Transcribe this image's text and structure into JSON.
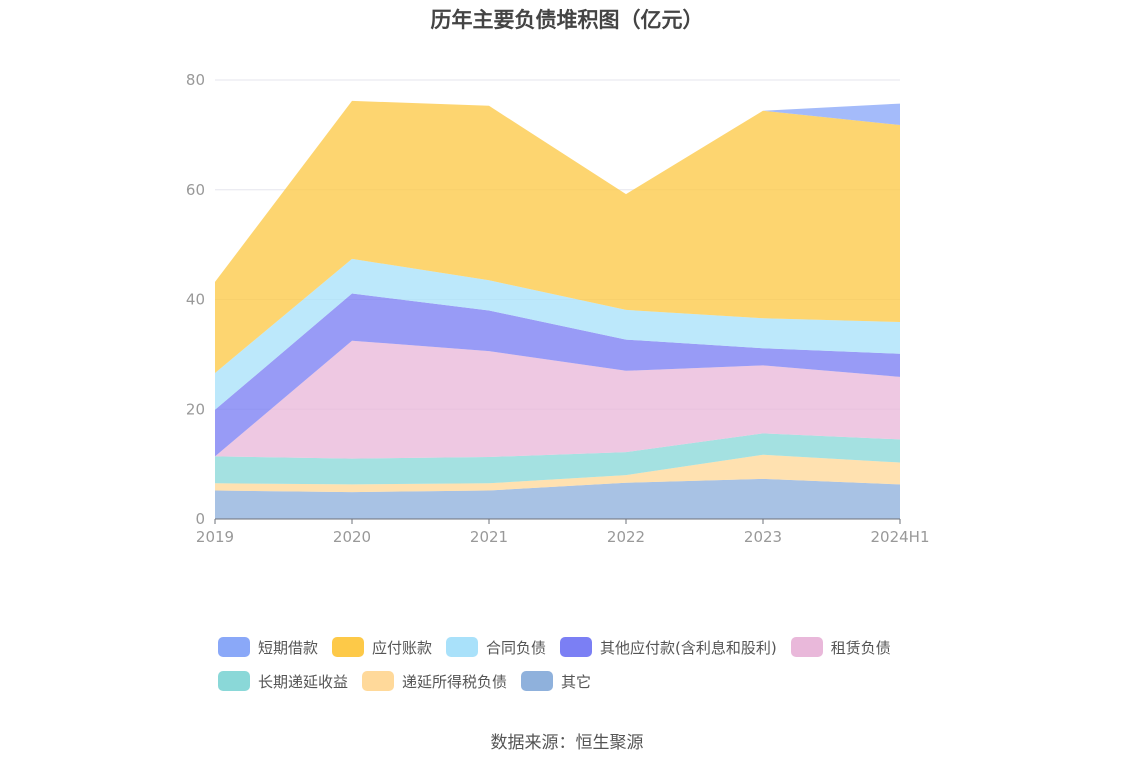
{
  "title": "历年主要负债堆积图（亿元）",
  "source": "数据来源：恒生聚源",
  "chart_data": {
    "type": "area",
    "stacked": true,
    "categories": [
      "2019",
      "2020",
      "2021",
      "2022",
      "2023",
      "2024H1"
    ],
    "ylim": [
      0,
      80
    ],
    "yticks": [
      0,
      20,
      40,
      60,
      80
    ],
    "grid": true,
    "legend_position": "bottom",
    "series": [
      {
        "name": "其它",
        "color": "#8fb1dc",
        "values": [
          5.2,
          4.9,
          5.2,
          6.6,
          7.3,
          6.3
        ]
      },
      {
        "name": "递延所得税负债",
        "color": "#ffd99a",
        "values": [
          1.3,
          1.4,
          1.3,
          1.4,
          4.4,
          4.0
        ]
      },
      {
        "name": "长期递延收益",
        "color": "#8ad8d8",
        "values": [
          4.9,
          4.7,
          4.8,
          4.2,
          3.9,
          4.2
        ]
      },
      {
        "name": "租赁负债",
        "color": "#e9b8da",
        "values": [
          0.0,
          21.5,
          19.3,
          14.8,
          12.4,
          11.4
        ]
      },
      {
        "name": "其他应付款(含利息和股利)",
        "color": "#7b7ff4",
        "values": [
          8.5,
          8.6,
          7.4,
          5.7,
          3.1,
          4.2
        ]
      },
      {
        "name": "合同负债",
        "color": "#a9e1fa",
        "values": [
          6.7,
          6.3,
          5.5,
          5.4,
          5.5,
          5.8
        ]
      },
      {
        "name": "应付账款",
        "color": "#fdc948",
        "values": [
          16.6,
          28.8,
          31.8,
          21.1,
          37.8,
          35.9
        ]
      },
      {
        "name": "短期借款",
        "color": "#8aa8f8",
        "values": [
          0.0,
          0.0,
          0.0,
          0.0,
          0.0,
          3.9
        ]
      }
    ]
  },
  "legend": {
    "rows": [
      [
        {
          "label": "短期借款",
          "color": "#8aa8f8"
        },
        {
          "label": "应付账款",
          "color": "#fdc948"
        },
        {
          "label": "合同负债",
          "color": "#a9e1fa"
        },
        {
          "label": "其他应付款(含利息和股利)",
          "color": "#7b7ff4"
        },
        {
          "label": "租赁负债",
          "color": "#e9b8da"
        }
      ],
      [
        {
          "label": "长期递延收益",
          "color": "#8ad8d8"
        },
        {
          "label": "递延所得税负债",
          "color": "#ffd99a"
        },
        {
          "label": "其它",
          "color": "#8fb1dc"
        }
      ]
    ]
  }
}
